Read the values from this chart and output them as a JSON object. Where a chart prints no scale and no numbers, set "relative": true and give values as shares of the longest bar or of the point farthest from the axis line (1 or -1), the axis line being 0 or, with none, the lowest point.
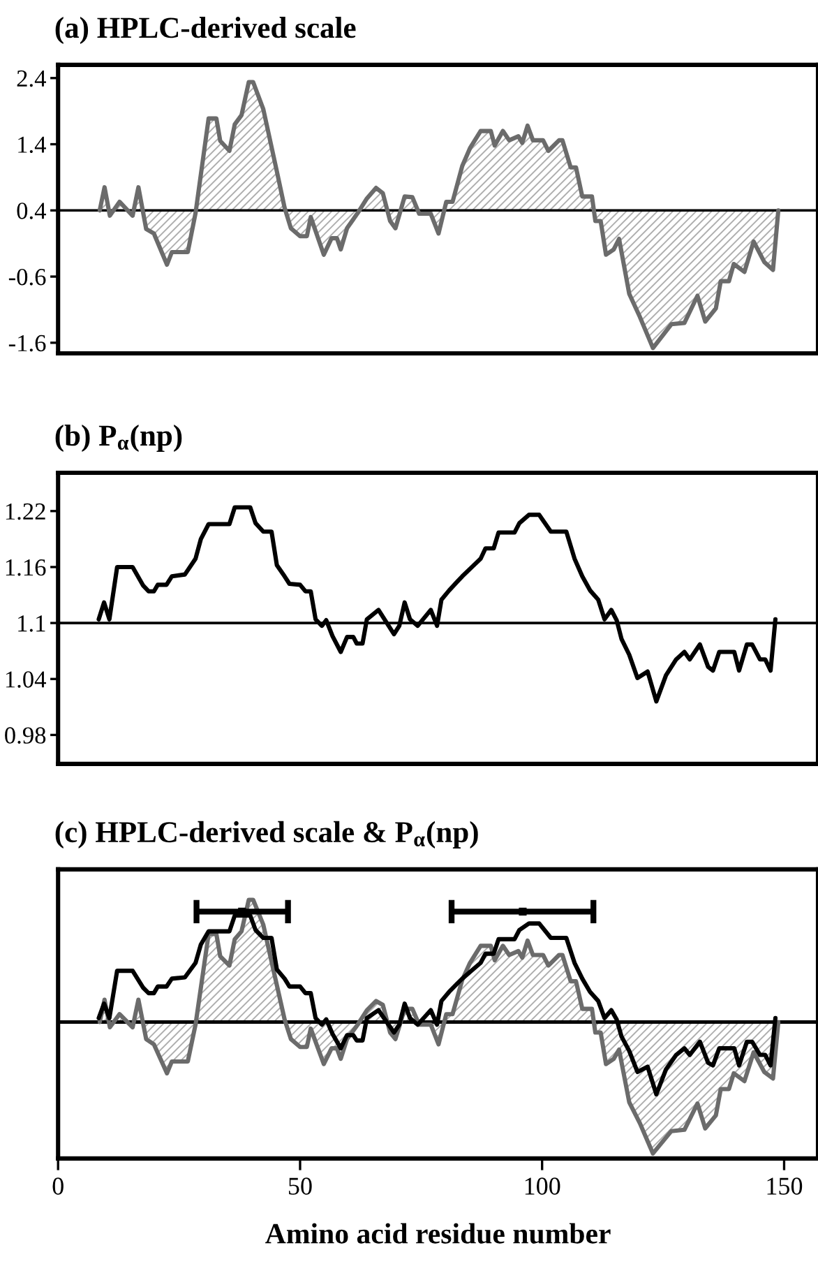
{
  "chart_data": [
    {
      "type": "area",
      "title": "(a) HPLC-derived scale",
      "x": [
        8.6,
        9.6,
        10.7,
        12.7,
        15.4,
        16.6,
        18.2,
        19.8,
        22.5,
        23.5,
        26.8,
        28.4,
        31.1,
        32.7,
        33.5,
        35.4,
        36.5,
        37.9,
        39.4,
        40.3,
        42.4,
        45.2,
        46.8,
        48.1,
        50.0,
        51.4,
        52.2,
        54.9,
        56.5,
        57.6,
        58.4,
        59.7,
        61.9,
        63.8,
        65.7,
        67.1,
        68.6,
        69.7,
        71.6,
        73.2,
        74.6,
        77.0,
        78.6,
        80.2,
        81.5,
        83.5,
        85.1,
        87.3,
        89.4,
        90.2,
        91.9,
        93.2,
        95.1,
        95.9,
        97.0,
        98.1,
        100.2,
        101.3,
        103.5,
        104.2,
        105.9,
        107.0,
        108.3,
        110.3,
        111.0,
        112.1,
        113.2,
        114.8,
        115.9,
        118.0,
        120.2,
        122.9,
        126.7,
        129.4,
        132.1,
        133.7,
        135.9,
        136.9,
        138.6,
        139.6,
        141.8,
        143.7,
        145.9,
        147.7,
        148.8
      ],
      "series": [
        {
          "color": "#6b6b6b",
          "values": [
            0.4,
            0.75,
            0.32,
            0.53,
            0.32,
            0.75,
            0.12,
            0.05,
            -0.42,
            -0.23,
            -0.23,
            0.36,
            1.79,
            1.79,
            1.45,
            1.3,
            1.7,
            1.84,
            2.34,
            2.34,
            1.93,
            0.99,
            0.44,
            0.13,
            0.01,
            0.01,
            0.3,
            -0.27,
            -0.02,
            -0.02,
            -0.19,
            0.13,
            0.36,
            0.58,
            0.74,
            0.66,
            0.24,
            0.13,
            0.61,
            0.6,
            0.35,
            0.35,
            0.05,
            0.53,
            0.53,
            1.07,
            1.34,
            1.6,
            1.6,
            1.38,
            1.6,
            1.46,
            1.52,
            1.42,
            1.68,
            1.46,
            1.46,
            1.3,
            1.46,
            1.46,
            1.05,
            1.05,
            0.61,
            0.61,
            0.24,
            0.24,
            -0.27,
            -0.19,
            -0.03,
            -0.86,
            -1.21,
            -1.68,
            -1.32,
            -1.3,
            -0.89,
            -1.28,
            -1.08,
            -0.67,
            -0.67,
            -0.41,
            -0.53,
            -0.07,
            -0.38,
            -0.5,
            0.4
          ]
        }
      ],
      "xlim": [
        0,
        157
      ],
      "ylim": [
        -1.76,
        2.6
      ],
      "yticks": [
        2.4,
        1.4,
        0.4,
        -0.6,
        -1.6
      ],
      "tick_labels": "y",
      "ref_lines": [
        {
          "axis": "y",
          "value": 0.4,
          "color": "#000000"
        }
      ]
    },
    {
      "type": "line",
      "title": "(b) P$_{α}$(np)",
      "x": [
        8.4,
        9.5,
        10.6,
        12.2,
        15.4,
        17.6,
        18.7,
        19.8,
        20.6,
        22.4,
        23.5,
        26.2,
        28.4,
        29.5,
        31.1,
        35.4,
        36.5,
        39.7,
        40.8,
        42.4,
        44.1,
        45.2,
        46.8,
        47.8,
        50.0,
        51.1,
        52.2,
        53.2,
        54.5,
        55.4,
        56.7,
        58.4,
        59.7,
        61.0,
        61.7,
        62.9,
        63.8,
        66.2,
        69.4,
        70.5,
        71.6,
        72.7,
        74.3,
        77.0,
        78.3,
        79.2,
        80.8,
        82.4,
        83.5,
        85.7,
        87.3,
        88.3,
        90.0,
        91.0,
        94.3,
        95.3,
        97.3,
        99.4,
        101.8,
        105.0,
        106.7,
        108.3,
        109.9,
        111.6,
        112.9,
        114.3,
        115.4,
        116.4,
        118.0,
        119.7,
        121.8,
        123.6,
        125.6,
        127.7,
        129.4,
        130.5,
        132.6,
        134.3,
        135.3,
        136.6,
        139.7,
        140.7,
        142.3,
        143.4,
        145.0,
        146.1,
        147.2,
        148.2
      ],
      "series": [
        {
          "color": "#000000",
          "values": [
            1.104,
            1.122,
            1.104,
            1.16,
            1.16,
            1.14,
            1.134,
            1.134,
            1.141,
            1.141,
            1.15,
            1.152,
            1.169,
            1.19,
            1.206,
            1.206,
            1.224,
            1.224,
            1.207,
            1.198,
            1.198,
            1.162,
            1.15,
            1.142,
            1.141,
            1.134,
            1.134,
            1.104,
            1.097,
            1.103,
            1.086,
            1.069,
            1.085,
            1.085,
            1.078,
            1.078,
            1.104,
            1.114,
            1.088,
            1.097,
            1.122,
            1.104,
            1.097,
            1.114,
            1.097,
            1.125,
            1.135,
            1.144,
            1.15,
            1.161,
            1.169,
            1.18,
            1.18,
            1.197,
            1.197,
            1.207,
            1.216,
            1.216,
            1.198,
            1.198,
            1.169,
            1.15,
            1.135,
            1.125,
            1.104,
            1.114,
            1.103,
            1.083,
            1.066,
            1.041,
            1.048,
            1.016,
            1.044,
            1.061,
            1.069,
            1.061,
            1.077,
            1.053,
            1.049,
            1.069,
            1.069,
            1.049,
            1.077,
            1.077,
            1.061,
            1.061,
            1.049,
            1.104
          ]
        }
      ],
      "xlim": [
        0,
        157
      ],
      "ylim": [
        0.949,
        1.261
      ],
      "yticks": [
        1.22,
        1.16,
        1.1,
        1.04,
        0.98
      ],
      "tick_labels": "y",
      "ref_lines": [
        {
          "axis": "y",
          "value": 1.1,
          "color": "#000000"
        }
      ]
    },
    {
      "type": "line",
      "title": "(c) HPLC-derived scale & P$_{α}$(np)",
      "xlabel": "Amino acid residue number",
      "relative": true,
      "series": [
        {
          "type": "area",
          "color": "#6b6b6b",
          "x": [
            8.6,
            9.6,
            10.7,
            12.7,
            15.4,
            16.6,
            18.2,
            19.8,
            22.5,
            23.5,
            26.8,
            28.4,
            31.1,
            32.7,
            33.5,
            35.4,
            36.5,
            37.9,
            39.4,
            40.3,
            42.4,
            45.2,
            46.8,
            48.1,
            50.0,
            51.4,
            52.2,
            54.9,
            56.5,
            57.6,
            58.4,
            59.7,
            61.9,
            63.8,
            65.7,
            67.1,
            68.6,
            69.7,
            71.6,
            73.2,
            74.6,
            77.0,
            78.6,
            80.2,
            81.5,
            83.5,
            85.1,
            87.3,
            89.4,
            90.2,
            91.9,
            93.2,
            95.1,
            95.9,
            97.0,
            98.1,
            100.2,
            101.3,
            103.5,
            104.2,
            105.9,
            107.0,
            108.3,
            110.3,
            111.0,
            112.1,
            113.2,
            114.8,
            115.9,
            118.0,
            120.2,
            122.9,
            126.7,
            129.4,
            132.1,
            133.7,
            135.9,
            136.9,
            138.6,
            139.6,
            141.8,
            143.7,
            145.9,
            147.7,
            148.8
          ],
          "values": [
            0,
            0.17,
            -0.04,
            0.06,
            -0.04,
            0.17,
            -0.13,
            -0.17,
            -0.39,
            -0.3,
            -0.3,
            -0.02,
            0.67,
            0.67,
            0.5,
            0.43,
            0.63,
            0.69,
            0.93,
            0.93,
            0.74,
            0.28,
            0.02,
            -0.13,
            -0.19,
            -0.19,
            -0.05,
            -0.32,
            -0.2,
            -0.2,
            -0.28,
            -0.13,
            -0.02,
            0.09,
            0.16,
            0.13,
            -0.08,
            -0.13,
            0.1,
            0.1,
            -0.02,
            -0.02,
            -0.17,
            0.06,
            0.06,
            0.32,
            0.45,
            0.58,
            0.58,
            0.47,
            0.58,
            0.51,
            0.54,
            0.49,
            0.62,
            0.51,
            0.51,
            0.43,
            0.51,
            0.51,
            0.31,
            0.31,
            0.1,
            0.1,
            -0.08,
            -0.08,
            -0.32,
            -0.28,
            -0.21,
            -0.61,
            -0.77,
            -1.0,
            -0.83,
            -0.82,
            -0.62,
            -0.81,
            -0.71,
            -0.51,
            -0.51,
            -0.39,
            -0.45,
            -0.23,
            -0.38,
            -0.43,
            0
          ]
        },
        {
          "type": "line",
          "color": "#000000",
          "x": [
            8.4,
            9.5,
            10.6,
            12.2,
            15.4,
            17.6,
            18.7,
            19.8,
            20.6,
            22.4,
            23.5,
            26.2,
            28.4,
            29.5,
            31.1,
            35.4,
            36.5,
            39.7,
            40.8,
            42.4,
            44.1,
            45.2,
            46.8,
            47.8,
            50.0,
            51.1,
            52.2,
            53.2,
            54.5,
            55.4,
            56.7,
            58.4,
            59.7,
            61.0,
            61.7,
            62.9,
            63.8,
            66.2,
            69.4,
            70.5,
            71.6,
            72.7,
            74.3,
            77.0,
            78.3,
            79.2,
            80.8,
            82.4,
            83.5,
            85.7,
            87.3,
            88.3,
            90.0,
            91.0,
            94.3,
            95.3,
            97.3,
            99.4,
            101.8,
            105.0,
            106.7,
            108.3,
            109.9,
            111.6,
            112.9,
            114.3,
            115.4,
            116.4,
            118.0,
            119.7,
            121.8,
            123.6,
            125.6,
            127.7,
            129.4,
            130.5,
            132.6,
            134.3,
            135.3,
            136.6,
            139.7,
            140.7,
            142.3,
            143.4,
            145.0,
            146.1,
            147.2,
            148.2
          ],
          "values": [
            0.03,
            0.14,
            0.03,
            0.39,
            0.39,
            0.26,
            0.22,
            0.22,
            0.27,
            0.27,
            0.33,
            0.34,
            0.45,
            0.59,
            0.69,
            0.69,
            0.81,
            0.81,
            0.7,
            0.64,
            0.64,
            0.4,
            0.33,
            0.27,
            0.27,
            0.22,
            0.22,
            0.03,
            -0.02,
            0.02,
            -0.09,
            -0.2,
            -0.1,
            -0.1,
            -0.14,
            -0.14,
            0.03,
            0.09,
            -0.08,
            -0.02,
            0.14,
            0.03,
            -0.02,
            0.09,
            -0.02,
            0.16,
            0.23,
            0.29,
            0.33,
            0.4,
            0.45,
            0.52,
            0.52,
            0.63,
            0.63,
            0.7,
            0.75,
            0.75,
            0.64,
            0.64,
            0.45,
            0.33,
            0.23,
            0.16,
            0.03,
            0.09,
            0.02,
            -0.11,
            -0.22,
            -0.38,
            -0.34,
            -0.55,
            -0.36,
            -0.25,
            -0.2,
            -0.25,
            -0.15,
            -0.31,
            -0.33,
            -0.2,
            -0.2,
            -0.33,
            -0.15,
            -0.15,
            -0.25,
            -0.25,
            -0.33,
            0.03
          ]
        },
        {
          "type": "scatter",
          "color": "#000000",
          "x": [
            38,
            96
          ],
          "values": [
            0.84,
            0.84
          ],
          "xerrors": [
            [
              28.6,
              47.5
            ],
            [
              81.3,
              110.6
            ]
          ]
        }
      ],
      "xlim": [
        0,
        157
      ],
      "xticks": [
        0,
        50,
        100,
        150
      ],
      "tick_labels": "x",
      "ref_lines": [
        {
          "axis": "y",
          "value": 0,
          "color": "#000000"
        }
      ]
    }
  ]
}
